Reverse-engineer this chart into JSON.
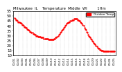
{
  "title": "Milwaukee  IL    Temperature  Middle  WI         1Hm",
  "bg_color": "#ffffff",
  "plot_bg": "#ffffff",
  "line_color": "#ff0000",
  "marker_size": 1.5,
  "ylim": [
    10,
    55
  ],
  "yticks": [
    10,
    15,
    20,
    25,
    30,
    35,
    40,
    45,
    50,
    55
  ],
  "ylabel_fontsize": 4,
  "xlabel_fontsize": 3.0,
  "title_fontsize": 3.8,
  "legend_label": "Outdoor Temp",
  "legend_color": "#ff0000",
  "y_values": [
    48,
    47,
    46,
    46,
    45,
    44,
    44,
    43,
    43,
    42,
    41,
    41,
    40,
    39,
    39,
    38,
    38,
    37,
    36,
    36,
    35,
    34,
    34,
    33,
    33,
    32,
    32,
    31,
    31,
    30,
    30,
    30,
    29,
    29,
    29,
    29,
    28,
    28,
    28,
    28,
    27,
    27,
    27,
    27,
    27,
    27,
    26,
    26,
    26,
    26,
    26,
    26,
    26,
    26,
    27,
    27,
    28,
    28,
    29,
    30,
    31,
    32,
    33,
    34,
    35,
    36,
    37,
    38,
    39,
    40,
    41,
    42,
    43,
    43,
    44,
    44,
    45,
    45,
    46,
    46,
    46,
    47,
    47,
    47,
    47,
    47,
    46,
    46,
    45,
    45,
    44,
    43,
    42,
    41,
    40,
    38,
    37,
    36,
    34,
    33,
    31,
    30,
    29,
    28,
    27,
    26,
    25,
    24,
    23,
    22,
    21,
    20,
    19,
    18,
    17,
    17,
    16,
    16,
    15,
    15,
    15,
    14,
    14,
    14,
    14,
    14,
    14,
    14,
    14,
    14,
    14,
    14,
    14,
    14,
    14,
    14,
    14
  ],
  "xtick_labels": [
    "01/01",
    "01/02",
    "01/03",
    "01/04",
    "01/05",
    "01/06",
    "01/07",
    "01/08",
    "01/09",
    "01/10",
    "01/11",
    "01/12",
    "01/13",
    "01/14",
    "01/15",
    "01/16",
    "01/17",
    "01/18",
    "01/19",
    "01/20",
    "01/21",
    "01/22",
    "01/23",
    "01/24",
    "01/25"
  ]
}
